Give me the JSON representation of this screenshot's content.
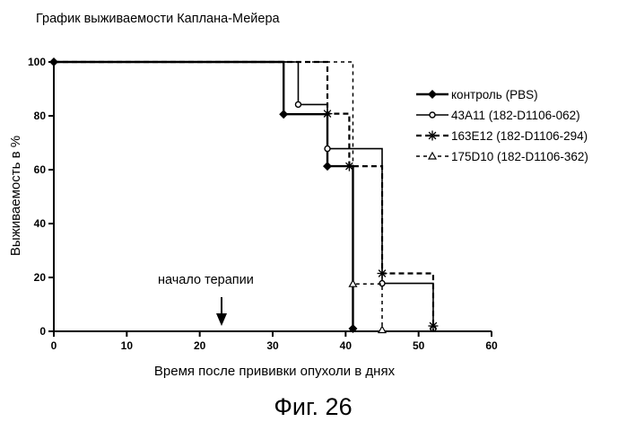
{
  "chart_data": {
    "type": "line",
    "subtype": "kaplan-meier step",
    "title": "График выживаемости Каплана-Мейера",
    "xlabel": "Время после прививки опухоли в днях",
    "ylabel": "Выживаемость в %",
    "xlim": [
      0,
      60
    ],
    "ylim": [
      0,
      100
    ],
    "xticks": [
      "0",
      "10",
      "20",
      "30",
      "40",
      "50",
      "60"
    ],
    "yticks": [
      "0",
      "20",
      "40",
      "60",
      "80",
      "100"
    ],
    "grid": false,
    "legend_position": "right",
    "series": [
      {
        "name": "контроль (PBS)",
        "line": "solid-bold",
        "marker": "diamond",
        "steps": [
          [
            0,
            100
          ],
          [
            31.5,
            80.6
          ],
          [
            37.5,
            61.3
          ],
          [
            41,
            0
          ]
        ],
        "markers": [
          [
            0,
            100
          ],
          [
            31.5,
            80.6
          ],
          [
            37.5,
            61.3
          ],
          [
            41,
            1
          ]
        ]
      },
      {
        "name": "43A11 (182-D1106-062)",
        "line": "solid",
        "marker": "circle",
        "steps": [
          [
            0,
            100
          ],
          [
            33.5,
            84.2
          ],
          [
            37.5,
            67.8
          ],
          [
            45,
            17.8
          ],
          [
            52,
            0
          ]
        ],
        "markers": [
          [
            33.5,
            84.2
          ],
          [
            37.5,
            67.8
          ],
          [
            45,
            17.8
          ],
          [
            52,
            1
          ]
        ]
      },
      {
        "name": "163E12 (182-D1106-294)",
        "line": "dashed-bold",
        "marker": "asterisk",
        "steps": [
          [
            0,
            100
          ],
          [
            37.5,
            80.8
          ],
          [
            40.5,
            61.3
          ],
          [
            45,
            21.5
          ],
          [
            52,
            0
          ]
        ],
        "markers": [
          [
            37.5,
            80.8
          ],
          [
            40.5,
            61.3
          ],
          [
            45,
            21.5
          ],
          [
            52,
            2
          ]
        ]
      },
      {
        "name": "175D10 (182-D1106-362)",
        "line": "dashed",
        "marker": "triangle",
        "steps": [
          [
            0,
            100
          ],
          [
            41,
            17.6
          ],
          [
            45,
            0
          ]
        ],
        "markers": [
          [
            41,
            17.6
          ],
          [
            45,
            0.5
          ]
        ]
      }
    ],
    "annotation": {
      "text": "начало терапии",
      "arrow_x": 23
    }
  },
  "caption": "Фиг. 26"
}
